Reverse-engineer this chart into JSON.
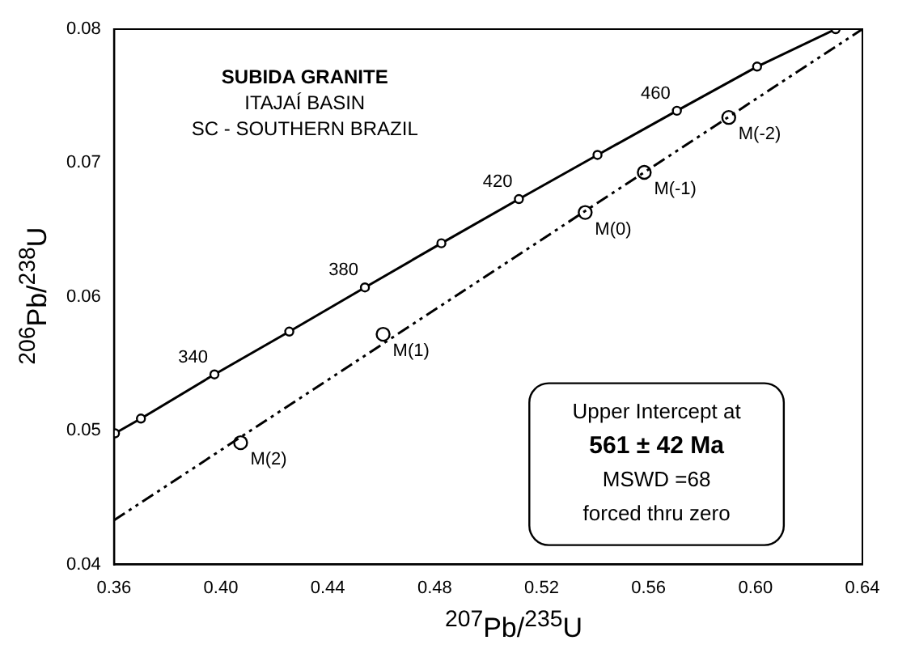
{
  "chart_data": {
    "type": "line",
    "xlabel": "$^{207}$Pb/$^{235}$U",
    "ylabel": "$^{206}$Pb/$^{238}$U",
    "xlim": [
      0.36,
      0.64
    ],
    "ylim": [
      0.04,
      0.08
    ],
    "xticks": [
      0.36,
      {
        "value": 0.4,
        "label": "0.40"
      },
      0.44,
      0.48,
      0.52,
      0.56,
      {
        "value": 0.6,
        "label": "0.60"
      },
      0.64
    ],
    "yticks": [
      0.04,
      0.05,
      0.06,
      0.07,
      0.08
    ],
    "grid": false,
    "legend": false,
    "series": [
      {
        "type": "line",
        "color": "#000000",
        "marker": "circle",
        "line_style": "solid",
        "x": [
          0.3604,
          0.3701,
          0.3976,
          0.4256,
          0.4539,
          0.4825,
          0.5115,
          0.5409,
          0.5706,
          0.6006,
          0.63
        ],
        "values": [
          0.0498,
          0.0509,
          0.0542,
          0.0574,
          0.0607,
          0.064,
          0.0673,
          0.0706,
          0.0739,
          0.0772,
          0.08
        ]
      },
      {
        "type": "line",
        "color": "#000000",
        "marker": "none",
        "line_style": "dashed",
        "x": [
          0.36,
          0.64
        ],
        "values": [
          0.0433,
          0.08
        ]
      },
      {
        "type": "scatter",
        "color": "#000000",
        "marker": "circle",
        "x": [
          0.4074,
          0.4607,
          0.5363,
          0.5584,
          0.59
        ],
        "values": [
          0.0491,
          0.0572,
          0.0663,
          0.0693,
          0.0734
        ]
      }
    ],
    "annotations": [
      "SUBIDA GRANITE",
      "ITAJAÍ BASIN",
      "SC - SOUTHERN BRAZIL",
      "Upper Intercept at",
      "561 ± 42 Ma",
      "MSWD =68",
      "forced thru zero",
      {
        "text": "340",
        "x": 0.3976,
        "y": 0.0542
      },
      {
        "text": "380",
        "x": 0.4539,
        "y": 0.0607
      },
      {
        "text": "420",
        "x": 0.5115,
        "y": 0.0673
      },
      {
        "text": "460",
        "x": 0.5706,
        "y": 0.0739
      },
      {
        "text": "M(2)",
        "x": 0.4074,
        "y": 0.0491
      },
      {
        "text": "M(1)",
        "x": 0.4607,
        "y": 0.0572
      },
      {
        "text": "M(0)",
        "x": 0.5363,
        "y": 0.0663
      },
      {
        "text": "M(-1)",
        "x": 0.5584,
        "y": 0.0693
      },
      {
        "text": "M(-2)",
        "x": 0.59,
        "y": 0.0734
      }
    ]
  }
}
